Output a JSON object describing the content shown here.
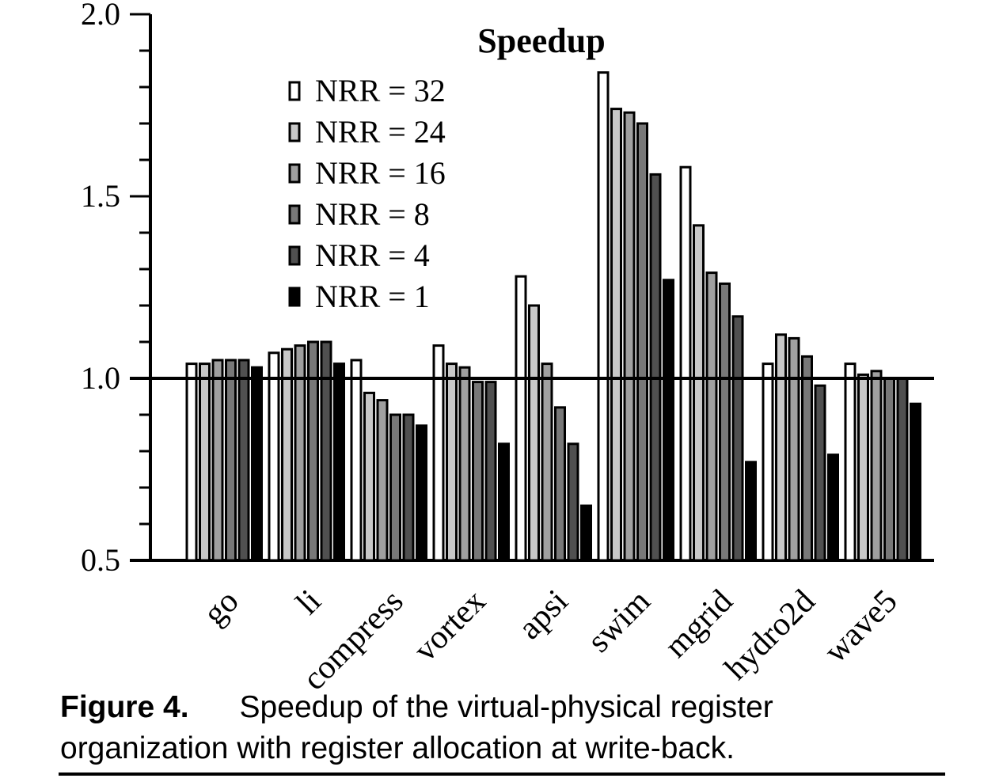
{
  "chart_data": {
    "type": "bar",
    "title": "Speedup",
    "xlabel": "",
    "ylabel": "",
    "ylim": [
      0.5,
      2.0
    ],
    "yticks": [
      "0.5",
      "1.0",
      "1.5",
      "2.0"
    ],
    "reference_line": 1.0,
    "legend_position": "top-center",
    "categories": [
      "go",
      "li",
      "compress",
      "vortex",
      "apsi",
      "swim",
      "mgrid",
      "hydro2d",
      "wave5"
    ],
    "series": [
      {
        "name": "NRR = 32",
        "color": "#ffffff",
        "values": [
          1.04,
          1.07,
          1.05,
          1.09,
          1.28,
          1.84,
          1.58,
          1.04,
          1.04
        ]
      },
      {
        "name": "NRR = 24",
        "color": "#c8c8c8",
        "values": [
          1.04,
          1.08,
          0.96,
          1.04,
          1.2,
          1.74,
          1.42,
          1.12,
          1.01
        ]
      },
      {
        "name": "NRR = 16",
        "color": "#a0a0a0",
        "values": [
          1.05,
          1.09,
          0.94,
          1.03,
          1.04,
          1.73,
          1.29,
          1.11,
          1.02
        ]
      },
      {
        "name": "NRR = 8",
        "color": "#787878",
        "values": [
          1.05,
          1.1,
          0.9,
          0.99,
          0.92,
          1.7,
          1.26,
          1.06,
          1.0
        ]
      },
      {
        "name": "NRR = 4",
        "color": "#505050",
        "values": [
          1.05,
          1.1,
          0.9,
          0.99,
          0.82,
          1.56,
          1.17,
          0.98,
          1.0
        ]
      },
      {
        "name": "NRR = 1",
        "color": "#000000",
        "values": [
          1.03,
          1.04,
          0.87,
          0.82,
          0.65,
          1.27,
          0.77,
          0.79,
          0.93
        ]
      }
    ]
  },
  "caption": {
    "label": "Figure 4.",
    "text": "Speedup of the virtual-physical register organization with register allocation at write-back."
  }
}
